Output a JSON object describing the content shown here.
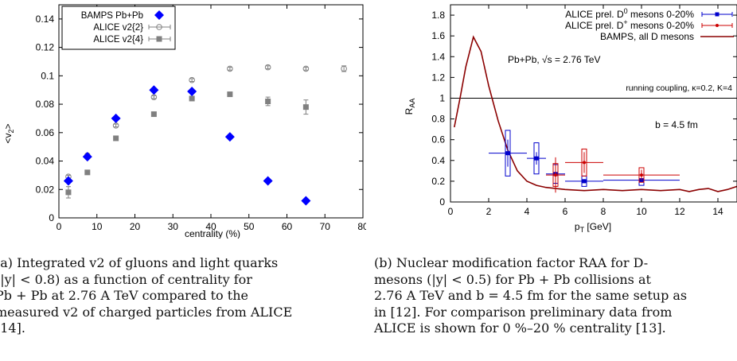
{
  "chart_data": [
    {
      "type": "scatter",
      "xlabel": "centrality (%)",
      "ylabel": "<v2>",
      "xlim": [
        0,
        80
      ],
      "ylim": [
        0,
        0.15
      ],
      "xticks": [
        "0",
        "10",
        "20",
        "30",
        "40",
        "50",
        "60",
        "70",
        "80"
      ],
      "yticks": [
        "0",
        "0.02",
        "0.04",
        "0.06",
        "0.08",
        "0.1",
        "0.12",
        "0.14"
      ],
      "grid": false,
      "legend_position": "top-left",
      "series": [
        {
          "name": "BAMPS Pb+Pb",
          "marker": "diamond",
          "color": "#0000ff",
          "points": [
            [
              2.5,
              0.026
            ],
            [
              7.5,
              0.043
            ],
            [
              15,
              0.07
            ],
            [
              25,
              0.09
            ],
            [
              35,
              0.089
            ],
            [
              45,
              0.057
            ],
            [
              55,
              0.026
            ],
            [
              65,
              0.012
            ]
          ]
        },
        {
          "name": "ALICE v2{2}",
          "marker": "open-circle",
          "color": "#808080",
          "points": [
            [
              2.5,
              0.029,
              0.001
            ],
            [
              7.5,
              0.044,
              0.001
            ],
            [
              15,
              0.065,
              0.001
            ],
            [
              25,
              0.085,
              0.001
            ],
            [
              35,
              0.097,
              0.001
            ],
            [
              45,
              0.105,
              0.001
            ],
            [
              55,
              0.106,
              0.001
            ],
            [
              65,
              0.105,
              0.001
            ],
            [
              75,
              0.105,
              0.002
            ]
          ]
        },
        {
          "name": "ALICE v2{4}",
          "marker": "filled-square",
          "color": "#808080",
          "points": [
            [
              2.5,
              0.018,
              0.004
            ],
            [
              7.5,
              0.032,
              0.001
            ],
            [
              15,
              0.056,
              0.001
            ],
            [
              25,
              0.073,
              0.001
            ],
            [
              35,
              0.084,
              0.001
            ],
            [
              45,
              0.087,
              0.001
            ],
            [
              55,
              0.082,
              0.003
            ],
            [
              65,
              0.078,
              0.005
            ]
          ]
        }
      ]
    },
    {
      "type": "line",
      "xlabel": "pT [GeV]",
      "ylabel": "RAA",
      "xlim": [
        0,
        15
      ],
      "ylim": [
        0,
        1.9
      ],
      "xticks": [
        "0",
        "2",
        "4",
        "6",
        "8",
        "10",
        "12",
        "14"
      ],
      "yticks": [
        "0",
        "0.2",
        "0.4",
        "0.6",
        "0.8",
        "1",
        "1.2",
        "1.4",
        "1.6",
        "1.8"
      ],
      "grid": false,
      "legend_position": "top-right",
      "reference_line_y": 1,
      "annotations": [
        "Pb+Pb, √s = 2.76 TeV",
        "running coupling, κ=0.2, K=4",
        "b = 4.5 fm"
      ],
      "series": [
        {
          "name": "ALICE prel. D0 mesons 0-20%",
          "color": "#0000cc",
          "points": [
            {
              "x": 3,
              "y": 0.47,
              "xerr": 1,
              "yerr": 0.13,
              "sys": 0.22
            },
            {
              "x": 4.5,
              "y": 0.42,
              "xerr": 0.5,
              "yerr": 0.06,
              "sys": 0.15
            },
            {
              "x": 5.5,
              "y": 0.27,
              "xerr": 0.5,
              "yerr": 0.04,
              "sys": 0.09
            },
            {
              "x": 7,
              "y": 0.2,
              "xerr": 1,
              "yerr": 0.02,
              "sys": 0.05
            },
            {
              "x": 10,
              "y": 0.21,
              "xerr": 2,
              "yerr": 0.02,
              "sys": 0.05
            }
          ]
        },
        {
          "name": "ALICE prel. D+ mesons 0-20%",
          "color": "#cc0000",
          "points": [
            {
              "x": 5.5,
              "y": 0.26,
              "xerr": 0.5,
              "yerr": 0.17,
              "sys": 0.11
            },
            {
              "x": 7,
              "y": 0.38,
              "xerr": 1,
              "yerr": 0.1,
              "sys": 0.13
            },
            {
              "x": 10,
              "y": 0.26,
              "xerr": 2,
              "yerr": 0.05,
              "sys": 0.07
            }
          ]
        },
        {
          "name": "BAMPS, all D mesons",
          "color": "#8b0000",
          "points": [
            [
              0.2,
              0.72
            ],
            [
              0.5,
              1.0
            ],
            [
              0.8,
              1.3
            ],
            [
              1.2,
              1.59
            ],
            [
              1.6,
              1.45
            ],
            [
              2,
              1.12
            ],
            [
              2.5,
              0.78
            ],
            [
              3,
              0.5
            ],
            [
              3.5,
              0.3
            ],
            [
              4,
              0.2
            ],
            [
              4.5,
              0.16
            ],
            [
              5,
              0.14
            ],
            [
              6,
              0.12
            ],
            [
              7,
              0.11
            ],
            [
              8,
              0.12
            ],
            [
              9,
              0.11
            ],
            [
              10,
              0.12
            ],
            [
              11,
              0.11
            ],
            [
              12,
              0.12
            ],
            [
              12.5,
              0.1
            ],
            [
              13,
              0.12
            ],
            [
              13.5,
              0.13
            ],
            [
              14,
              0.1
            ],
            [
              14.5,
              0.12
            ],
            [
              15,
              0.15
            ]
          ]
        }
      ]
    }
  ],
  "captions": {
    "left": [
      "(a) Integrated v2 of gluons and light quarks",
      "(|y| < 0.8) as a function of centrality for",
      "Pb + Pb at 2.76 A TeV compared to the",
      "measured v2 of charged particles from ALICE",
      "[14]."
    ],
    "right": [
      "(b) Nuclear modification factor RAA for D-",
      "mesons (|y| < 0.5) for Pb + Pb collisions at",
      "2.76 A TeV and b = 4.5 fm for the same setup as",
      "in [12]. For comparison preliminary data from",
      "ALICE is shown for 0 %–20 % centrality [13]."
    ]
  }
}
